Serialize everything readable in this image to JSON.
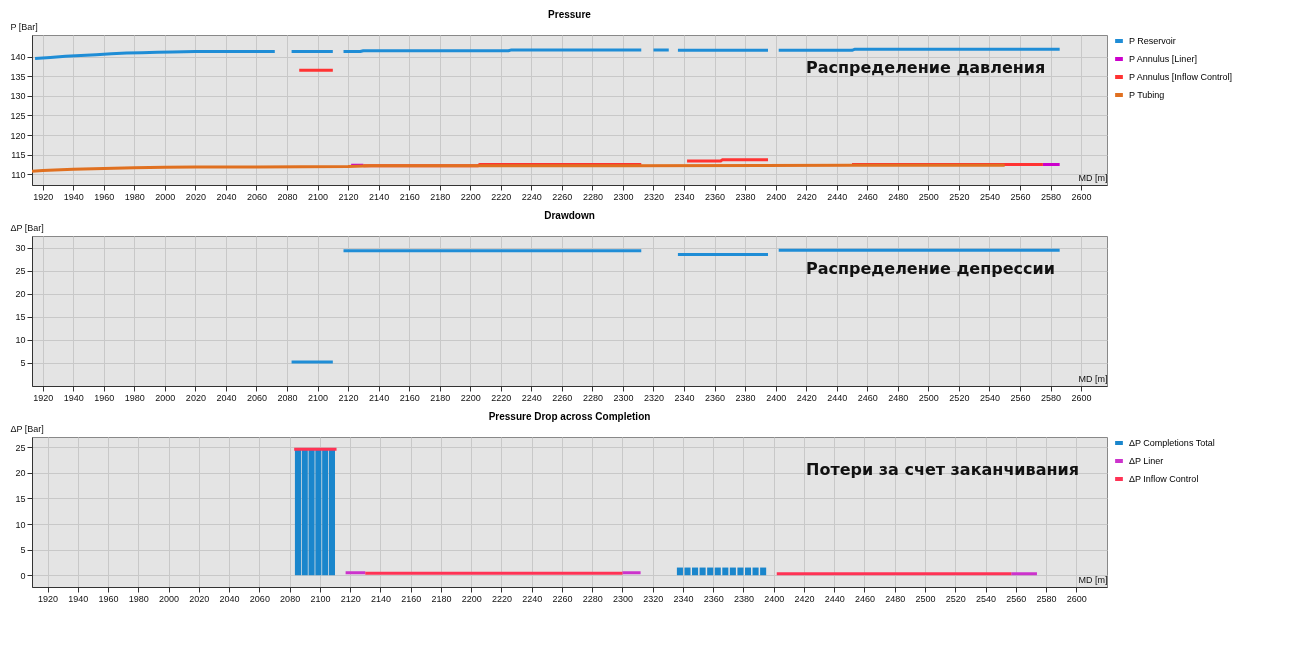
{
  "chart_data": [
    {
      "type": "line",
      "title": "Pressure",
      "xlabel": "MD [m]",
      "ylabel": "P [Bar]",
      "xlim": [
        1913,
        2617
      ],
      "xticks": [
        1920,
        1940,
        1960,
        1980,
        2000,
        2020,
        2040,
        2060,
        2080,
        2100,
        2120,
        2140,
        2160,
        2180,
        2200,
        2220,
        2240,
        2260,
        2280,
        2300,
        2320,
        2340,
        2360,
        2380,
        2400,
        2420,
        2440,
        2460,
        2480,
        2500,
        2520,
        2540,
        2560,
        2580,
        2600
      ],
      "ylim": [
        107.3,
        145.5
      ],
      "yticks": [
        110,
        115,
        120,
        125,
        130,
        135,
        140
      ],
      "grid": true,
      "legend": "right",
      "annotations": [
        "Распределение давления"
      ],
      "series": [
        {
          "name": "P Reservoir",
          "color": "#1f8dd6",
          "x": [
            1915,
            1925,
            1935,
            1945,
            1955,
            1965,
            1975,
            1985,
            1995,
            2005,
            2020,
            2072,
            2076,
            2083,
            2110,
            2113,
            2117,
            2128,
            2130,
            2225,
            2227,
            2312,
            2316,
            2320,
            2330,
            2333,
            2336,
            2395,
            2398,
            2402,
            2450,
            2452,
            2586
          ],
          "values": [
            139.5,
            139.8,
            140.1,
            140.3,
            140.5,
            140.7,
            140.9,
            141.0,
            141.1,
            141.2,
            141.3,
            141.3,
            null,
            141.3,
            141.3,
            null,
            141.3,
            141.3,
            141.5,
            141.5,
            141.7,
            141.7,
            null,
            141.7,
            141.7,
            null,
            141.6,
            141.6,
            null,
            141.6,
            141.6,
            141.9,
            141.9
          ]
        },
        {
          "name": "P Annulus [Liner]",
          "color": "#cc00cc",
          "x": [
            2122,
            2130,
            2131,
            2575,
            2586
          ],
          "values": [
            112.3,
            112.3,
            null,
            112.5,
            112.5
          ]
        },
        {
          "name": "P Annulus [Inflow Control]",
          "color": "#ff3333",
          "x": [
            2088,
            2110,
            2111,
            2130,
            2205,
            2206,
            2312,
            2313,
            2342,
            2364,
            2365,
            2395,
            2396,
            2450,
            2575
          ],
          "values": [
            136.5,
            136.5,
            null,
            112.2,
            112.2,
            112.5,
            112.5,
            null,
            113.4,
            113.4,
            113.7,
            113.7,
            null,
            112.5,
            112.5
          ]
        },
        {
          "name": "P Tubing",
          "color": "#e07020",
          "x": [
            1913,
            1920,
            1940,
            1960,
            1980,
            2000,
            2020,
            2060,
            2120,
            2135,
            2200,
            2300,
            2450,
            2550
          ],
          "values": [
            110.8,
            111.0,
            111.3,
            111.5,
            111.7,
            111.8,
            111.9,
            111.9,
            112.0,
            112.2,
            112.2,
            112.2,
            112.3,
            112.3
          ]
        }
      ]
    },
    {
      "type": "line",
      "title": "Drawdown",
      "xlabel": "MD [m]",
      "ylabel": "ΔP [Bar]",
      "xlim": [
        1913,
        2617
      ],
      "xticks": [
        1920,
        1940,
        1960,
        1980,
        2000,
        2020,
        2040,
        2060,
        2080,
        2100,
        2120,
        2140,
        2160,
        2180,
        2200,
        2220,
        2240,
        2260,
        2280,
        2300,
        2320,
        2340,
        2360,
        2380,
        2400,
        2420,
        2440,
        2460,
        2480,
        2500,
        2520,
        2540,
        2560,
        2580,
        2600
      ],
      "ylim": [
        0,
        32.5
      ],
      "yticks": [
        5,
        10,
        15,
        20,
        25,
        30
      ],
      "grid": true,
      "annotations": [
        "Распределение депрессии"
      ],
      "series": [
        {
          "color": "#1f8dd6",
          "x": [
            2083,
            2110,
            2113,
            2117,
            2312,
            2320,
            2336,
            2395,
            2398,
            2402,
            2586
          ],
          "values": [
            5.2,
            5.2,
            null,
            29.3,
            29.3,
            null,
            28.5,
            28.5,
            null,
            29.4,
            29.4
          ]
        }
      ]
    },
    {
      "type": "bar",
      "title": "Pressure Drop across Completion",
      "xlabel": "MD [m]",
      "ylabel": "ΔP [Bar]",
      "xlim": [
        1913,
        2617
      ],
      "xticks": [
        1920,
        1940,
        1960,
        1980,
        2000,
        2020,
        2040,
        2060,
        2080,
        2100,
        2120,
        2140,
        2160,
        2180,
        2200,
        2220,
        2240,
        2260,
        2280,
        2300,
        2320,
        2340,
        2360,
        2380,
        2400,
        2420,
        2440,
        2460,
        2480,
        2500,
        2520,
        2540,
        2560,
        2580,
        2600
      ],
      "ylim": [
        -2.3,
        27
      ],
      "yticks": [
        0,
        5,
        10,
        15,
        20,
        25
      ],
      "grid": true,
      "legend": "right",
      "annotations": [
        "Потери за счет заканчивания"
      ],
      "series": [
        {
          "name": "ΔP Completions Total",
          "color": "#1a86cc",
          "x": [
            2085.5,
            2090,
            2094.5,
            2099,
            2103.5,
            2108,
            2338,
            2343,
            2348,
            2353,
            2358,
            2363,
            2368,
            2373,
            2378,
            2383,
            2388,
            2393
          ],
          "values": [
            24.5,
            24.5,
            24.5,
            24.5,
            24.5,
            24.5,
            1.5,
            1.5,
            1.5,
            1.5,
            1.5,
            1.5,
            1.5,
            1.5,
            1.5,
            1.5,
            1.5,
            1.5
          ]
        },
        {
          "name": "ΔP Liner",
          "type": "line",
          "color": "#cc33cc",
          "x": [
            2117,
            2130,
            2131,
            2300,
            2312,
            2313,
            2557,
            2574
          ],
          "values": [
            0.5,
            0.5,
            null,
            0.5,
            0.5,
            null,
            0.3,
            0.3
          ]
        },
        {
          "name": "ΔP Inflow Control",
          "type": "line",
          "color": "#ff3355",
          "x": [
            2083,
            2111,
            2112,
            2130,
            2300,
            2301,
            2402,
            2557
          ],
          "values": [
            24.6,
            24.6,
            null,
            0.4,
            0.4,
            null,
            0.3,
            0.3
          ]
        }
      ]
    }
  ]
}
